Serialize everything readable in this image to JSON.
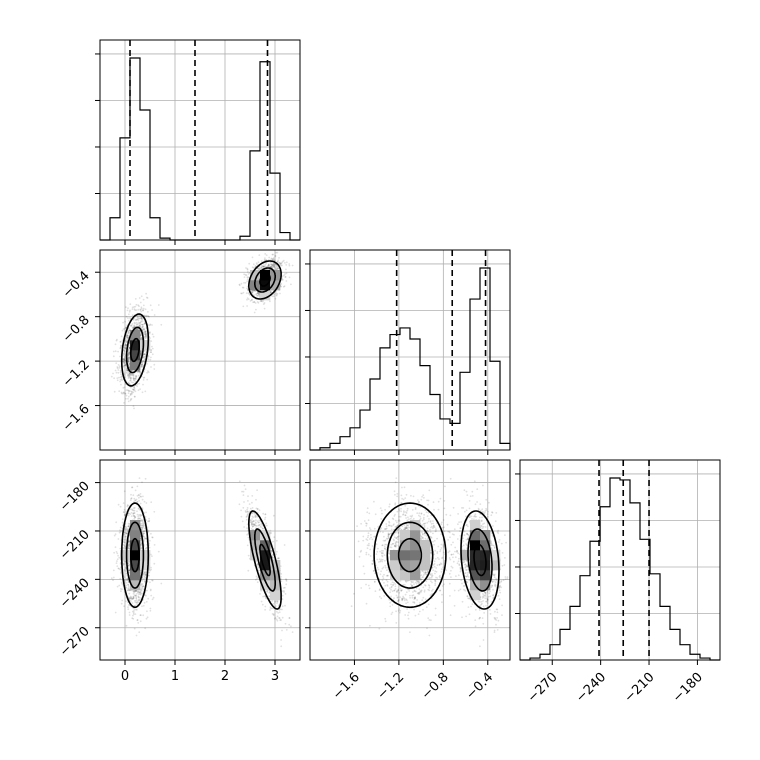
{
  "chart_data": {
    "type": "corner",
    "parameters": [
      "p1",
      "p2",
      "p3"
    ],
    "ranges": {
      "p1": [
        -0.5,
        3.5
      ],
      "p2": [
        -2.0,
        -0.2
      ],
      "p3": [
        -290,
        -166
      ]
    },
    "ticks": {
      "p1": [
        0,
        1,
        2,
        3
      ],
      "p2": [
        -1.6,
        -1.2,
        -0.8,
        -0.4
      ],
      "p3": [
        -270,
        -240,
        -210,
        -180
      ]
    },
    "tick_labels": {
      "p1": [
        "0",
        "1",
        "2",
        "3"
      ],
      "p2": [
        "−1.6",
        "−1.2",
        "−0.8",
        "−0.4"
      ],
      "p3": [
        "−270",
        "−240",
        "−210",
        "−180"
      ]
    },
    "quantiles": {
      "p1": [
        0.1,
        1.4,
        2.85
      ],
      "p2": [
        -1.22,
        -0.72,
        -0.42
      ],
      "p3": [
        -241,
        -226,
        -210
      ]
    },
    "histograms": {
      "p1": {
        "edges": [
          -0.5,
          -0.3,
          -0.1,
          0.1,
          0.3,
          0.5,
          0.7,
          0.9,
          1.1,
          1.3,
          1.5,
          1.7,
          1.9,
          2.1,
          2.3,
          2.5,
          2.7,
          2.9,
          3.1,
          3.3,
          3.5
        ],
        "counts": [
          0,
          12,
          55,
          98,
          70,
          12,
          1,
          0,
          0,
          0,
          0,
          0,
          0,
          0,
          2,
          48,
          96,
          36,
          4,
          0
        ]
      },
      "p2": {
        "edges": [
          -2.0,
          -1.91,
          -1.82,
          -1.73,
          -1.64,
          -1.55,
          -1.46,
          -1.37,
          -1.28,
          -1.19,
          -1.1,
          -1.01,
          -0.92,
          -0.83,
          -0.74,
          -0.65,
          -0.56,
          -0.47,
          -0.38,
          -0.29,
          -0.2
        ],
        "counts": [
          0,
          1,
          3,
          6,
          10,
          18,
          32,
          46,
          52,
          55,
          50,
          38,
          25,
          14,
          12,
          35,
          68,
          82,
          40,
          3
        ]
      },
      "p3": {
        "edges": [
          -290,
          -283.8,
          -277.6,
          -271.4,
          -265.2,
          -259,
          -252.8,
          -246.6,
          -240.4,
          -234.2,
          -228,
          -221.8,
          -215.6,
          -209.4,
          -203.2,
          -197,
          -190.8,
          -184.6,
          -178.4,
          -172.2,
          -166
        ],
        "counts": [
          0,
          1,
          3,
          8,
          16,
          28,
          44,
          62,
          80,
          95,
          94,
          82,
          63,
          45,
          28,
          16,
          8,
          3,
          1,
          0
        ]
      }
    },
    "clusters": [
      {
        "p1": 0.2,
        "p2": -1.1,
        "p3": -225,
        "sd1": 0.14,
        "sd2": 0.17,
        "sd3": 17,
        "w": 0.55
      },
      {
        "p1": 2.8,
        "p2": -0.47,
        "p3": -228,
        "sd1": 0.17,
        "sd2": 0.09,
        "sd3": 16,
        "w": 0.45
      }
    ],
    "grid": true,
    "title": "",
    "legend": ""
  }
}
